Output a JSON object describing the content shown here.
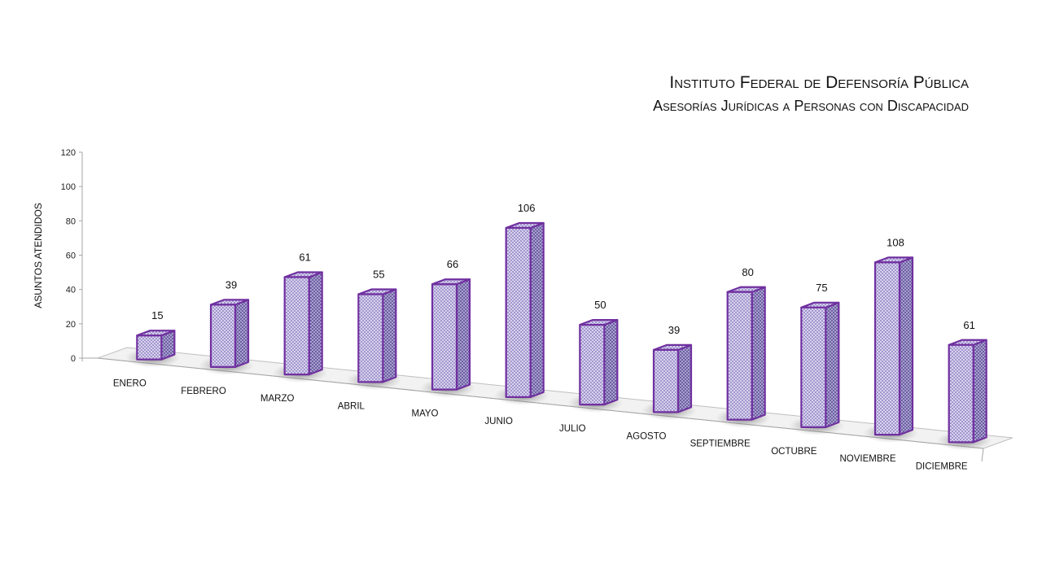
{
  "titles": {
    "main": "Instituto Federal de Defensoría Pública",
    "sub": "Asesorías Jurídicas a Personas con Discapacidad"
  },
  "colors": {
    "bar_fill": "#d9d2ef",
    "bar_pattern": "#8a7fc0",
    "bar_stroke": "#7030a0",
    "floor": "#f2f2f2"
  },
  "chart_data": {
    "type": "bar",
    "title": "",
    "xlabel": "",
    "ylabel": "ASUNTOS ATENDIDOS",
    "ylim": [
      0,
      120
    ],
    "yticks": [
      0,
      20,
      40,
      60,
      80,
      100,
      120
    ],
    "categories": [
      "ENERO",
      "FEBRERO",
      "MARZO",
      "ABRIL",
      "MAYO",
      "JUNIO",
      "JULIO",
      "AGOSTO",
      "SEPTIEMBRE",
      "OCTUBRE",
      "NOVIEMBRE",
      "DICIEMBRE"
    ],
    "values": [
      15,
      39,
      61,
      55,
      66,
      106,
      50,
      39,
      80,
      75,
      108,
      61
    ],
    "grid": false,
    "legend": "none"
  }
}
